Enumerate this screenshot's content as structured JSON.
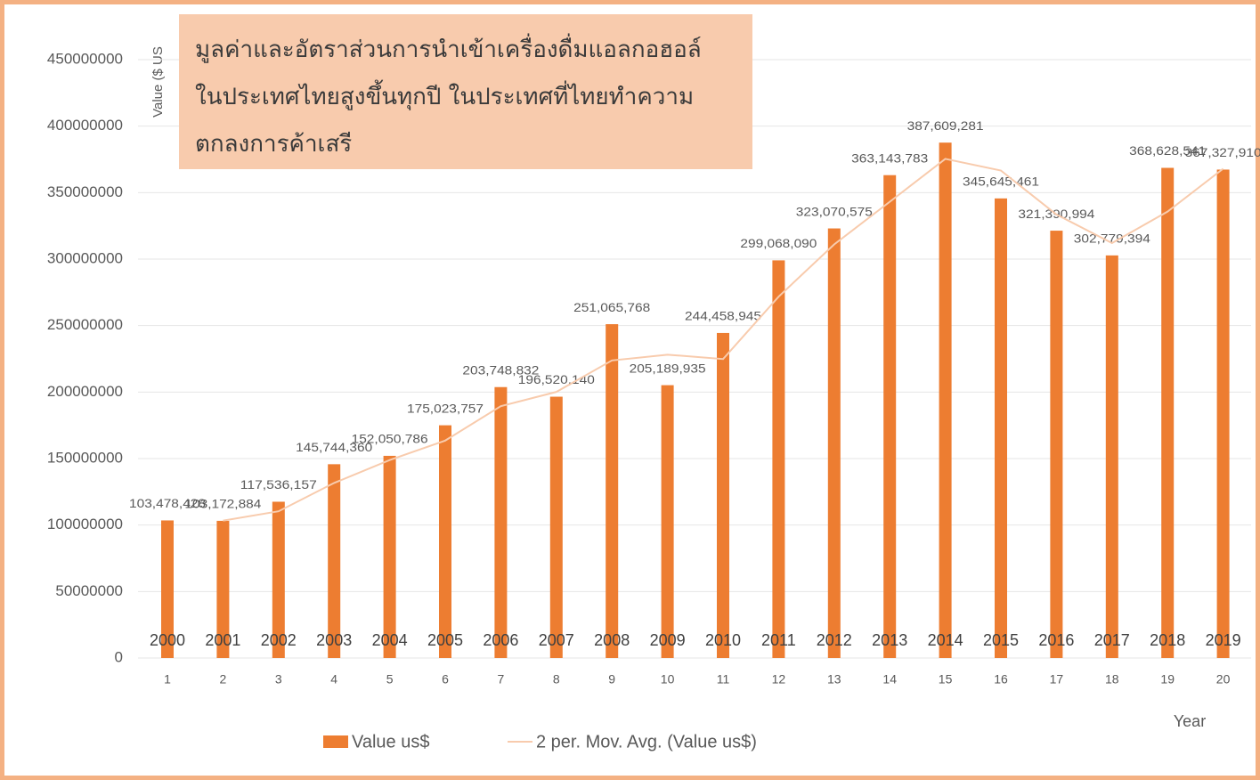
{
  "chart_data": {
    "type": "bar",
    "title": [
      "มูลค่าและอัตราส่วนการนำเข้าเครื่องดื่มแอลกอฮอล์",
      "ในประเทศไทยสูงขึ้นทุกปี ในประเทศที่ไทยทำความ",
      "ตกลงการค้าเสรี"
    ],
    "y_label": "Value ($ US",
    "x_label": "Year",
    "categories": [
      "1",
      "2",
      "3",
      "4",
      "5",
      "6",
      "7",
      "8",
      "9",
      "10",
      "11",
      "12",
      "13",
      "14",
      "15",
      "16",
      "17",
      "18",
      "19",
      "20"
    ],
    "bar_labels": [
      "2000",
      "2001",
      "2002",
      "2003",
      "2004",
      "2005",
      "2006",
      "2007",
      "2008",
      "2009",
      "2010",
      "2011",
      "2012",
      "2013",
      "2014",
      "2015",
      "2016",
      "2017",
      "2018",
      "2019"
    ],
    "series": [
      {
        "name": "Value us$",
        "type": "bar",
        "color": "#ed7d31",
        "values": [
          103478428,
          103172884,
          117536157,
          145744360,
          152050786,
          175023757,
          203748832,
          196520140,
          251065768,
          205189935,
          244458945,
          299068090,
          323070575,
          363143783,
          387609281,
          345645461,
          321390994,
          302779394,
          368628541,
          367327910
        ],
        "value_labels": [
          "103,478,428",
          "103,172,884",
          "117,536,157",
          "145,744,360",
          "152,050,786",
          "175,023,757",
          "203,748,832",
          "196,520,140",
          "251,065,768",
          "205,189,935",
          "244,458,945",
          "299,068,090",
          "323,070,575",
          "363,143,783",
          "387,609,281",
          "345,645,461",
          "321,390,994",
          "302,779,394",
          "368,628,541",
          "367,327,910"
        ]
      },
      {
        "name": "2 per. Mov. Avg. (Value us$)",
        "type": "line",
        "color": "#f8cbad",
        "values": [
          null,
          103325656,
          110354520.5,
          131640258.5,
          148897573,
          163537271.5,
          189386294.5,
          200134486,
          223792954,
          228127851.5,
          224824440,
          271763517.5,
          311069332.5,
          343107179,
          375376532,
          366627371,
          333518227.5,
          312085194,
          335703967.5,
          367978225.5
        ]
      }
    ],
    "ylim": [
      0,
      450000000
    ],
    "yticks": [
      0,
      50000000,
      100000000,
      150000000,
      200000000,
      250000000,
      300000000,
      350000000,
      400000000,
      450000000
    ],
    "grid": true,
    "legend": "bottom"
  }
}
